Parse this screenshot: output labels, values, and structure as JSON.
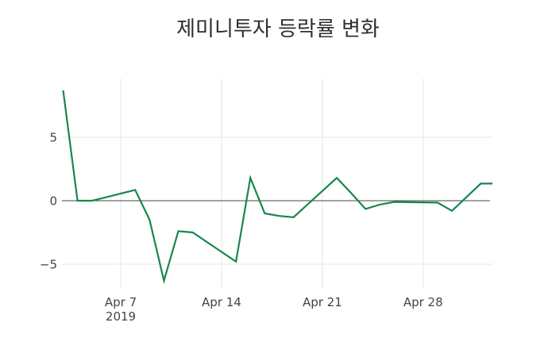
{
  "chart_data": {
    "type": "line",
    "title": "제미니투자 등락률 변화",
    "legend": "none",
    "grid": true,
    "background": "#ffffff",
    "title_color": "#2f2f2f",
    "tick_color": "#444444",
    "series": [
      {
        "color": "#17874e",
        "line_width": 2.2,
        "x": [
          "2019-04-03",
          "2019-04-04",
          "2019-04-05",
          "2019-04-08",
          "2019-04-09",
          "2019-04-10",
          "2019-04-11",
          "2019-04-12",
          "2019-04-15",
          "2019-04-16",
          "2019-04-17",
          "2019-04-18",
          "2019-04-19",
          "2019-04-22",
          "2019-04-23",
          "2019-04-24",
          "2019-04-25",
          "2019-04-26",
          "2019-04-29",
          "2019-04-30",
          "2019-05-02",
          "2019-05-03"
        ],
        "y": [
          8.7,
          0.0,
          0.0,
          0.85,
          -1.5,
          -6.3,
          -2.4,
          -2.5,
          -4.8,
          1.8,
          -1.0,
          -1.2,
          -1.3,
          1.8,
          0.6,
          -0.65,
          -0.3,
          -0.1,
          -0.15,
          -0.8,
          1.35,
          1.35
        ]
      }
    ],
    "xaxis": {
      "range": [
        "2019-04-02T22:00:00Z",
        "2019-05-02T19:30:00Z"
      ],
      "gridcolor": "#e6e6e6",
      "ticks": [
        {
          "date": "2019-04-07",
          "label": "Apr 7",
          "sublabel": "2019"
        },
        {
          "date": "2019-04-14",
          "label": "Apr 14",
          "sublabel": ""
        },
        {
          "date": "2019-04-21",
          "label": "Apr 21",
          "sublabel": ""
        },
        {
          "date": "2019-04-28",
          "label": "Apr 28",
          "sublabel": ""
        }
      ]
    },
    "yaxis": {
      "range": [
        -6.94,
        9.63
      ],
      "gridcolor": "#e6e6e6",
      "zeroline": true,
      "zerolinecolor": "#444444",
      "ticks": [
        {
          "value": 5,
          "label": "5"
        },
        {
          "value": 0,
          "label": "0"
        },
        {
          "value": -5,
          "label": "−5"
        }
      ]
    }
  }
}
